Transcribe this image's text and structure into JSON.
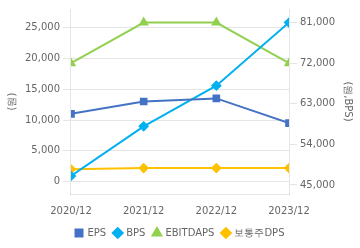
{
  "chart_data": {
    "type": "line",
    "categories": [
      "2020/12",
      "2021/12",
      "2022/12",
      "2023/12"
    ],
    "series": [
      {
        "name": "EPS",
        "color": "#4472c4",
        "marker": "square",
        "axis": "y",
        "values": [
          11000,
          13000,
          13500,
          9500
        ]
      },
      {
        "name": "BPS",
        "color": "#00b0f0",
        "marker": "diamond",
        "axis": "y2",
        "values": [
          47000,
          58000,
          67000,
          81000
        ]
      },
      {
        "name": "EBITDAPS",
        "color": "#92d050",
        "marker": "triangle",
        "axis": "y2",
        "values": [
          72000,
          81000,
          81000,
          72000
        ]
      },
      {
        "name": "보통주DPS",
        "color": "#ffc000",
        "marker": "diamond",
        "axis": "y",
        "values": [
          2000,
          2200,
          2200,
          2200
        ]
      }
    ],
    "ylim": [
      -2000,
      28000
    ],
    "yticks": [
      0,
      {
        "value": 5000,
        "label": "5,000"
      },
      {
        "value": 10000,
        "label": "10,000"
      },
      {
        "value": 15000,
        "label": "15,000"
      },
      {
        "value": 20000,
        "label": "20,000"
      },
      {
        "value": 25000,
        "label": "25,000"
      }
    ],
    "y_label": "(원)",
    "y2lim": [
      43000,
      84000
    ],
    "y2ticks": [
      {
        "value": 45000,
        "label": "45,000"
      },
      {
        "value": 54000,
        "label": "54,000"
      },
      {
        "value": 63000,
        "label": "63,000"
      },
      {
        "value": 72000,
        "label": "72,000"
      },
      {
        "value": 81000,
        "label": "81,000"
      }
    ],
    "y2_label": "(원,BPS)",
    "grid": true,
    "legend": "bottom"
  }
}
